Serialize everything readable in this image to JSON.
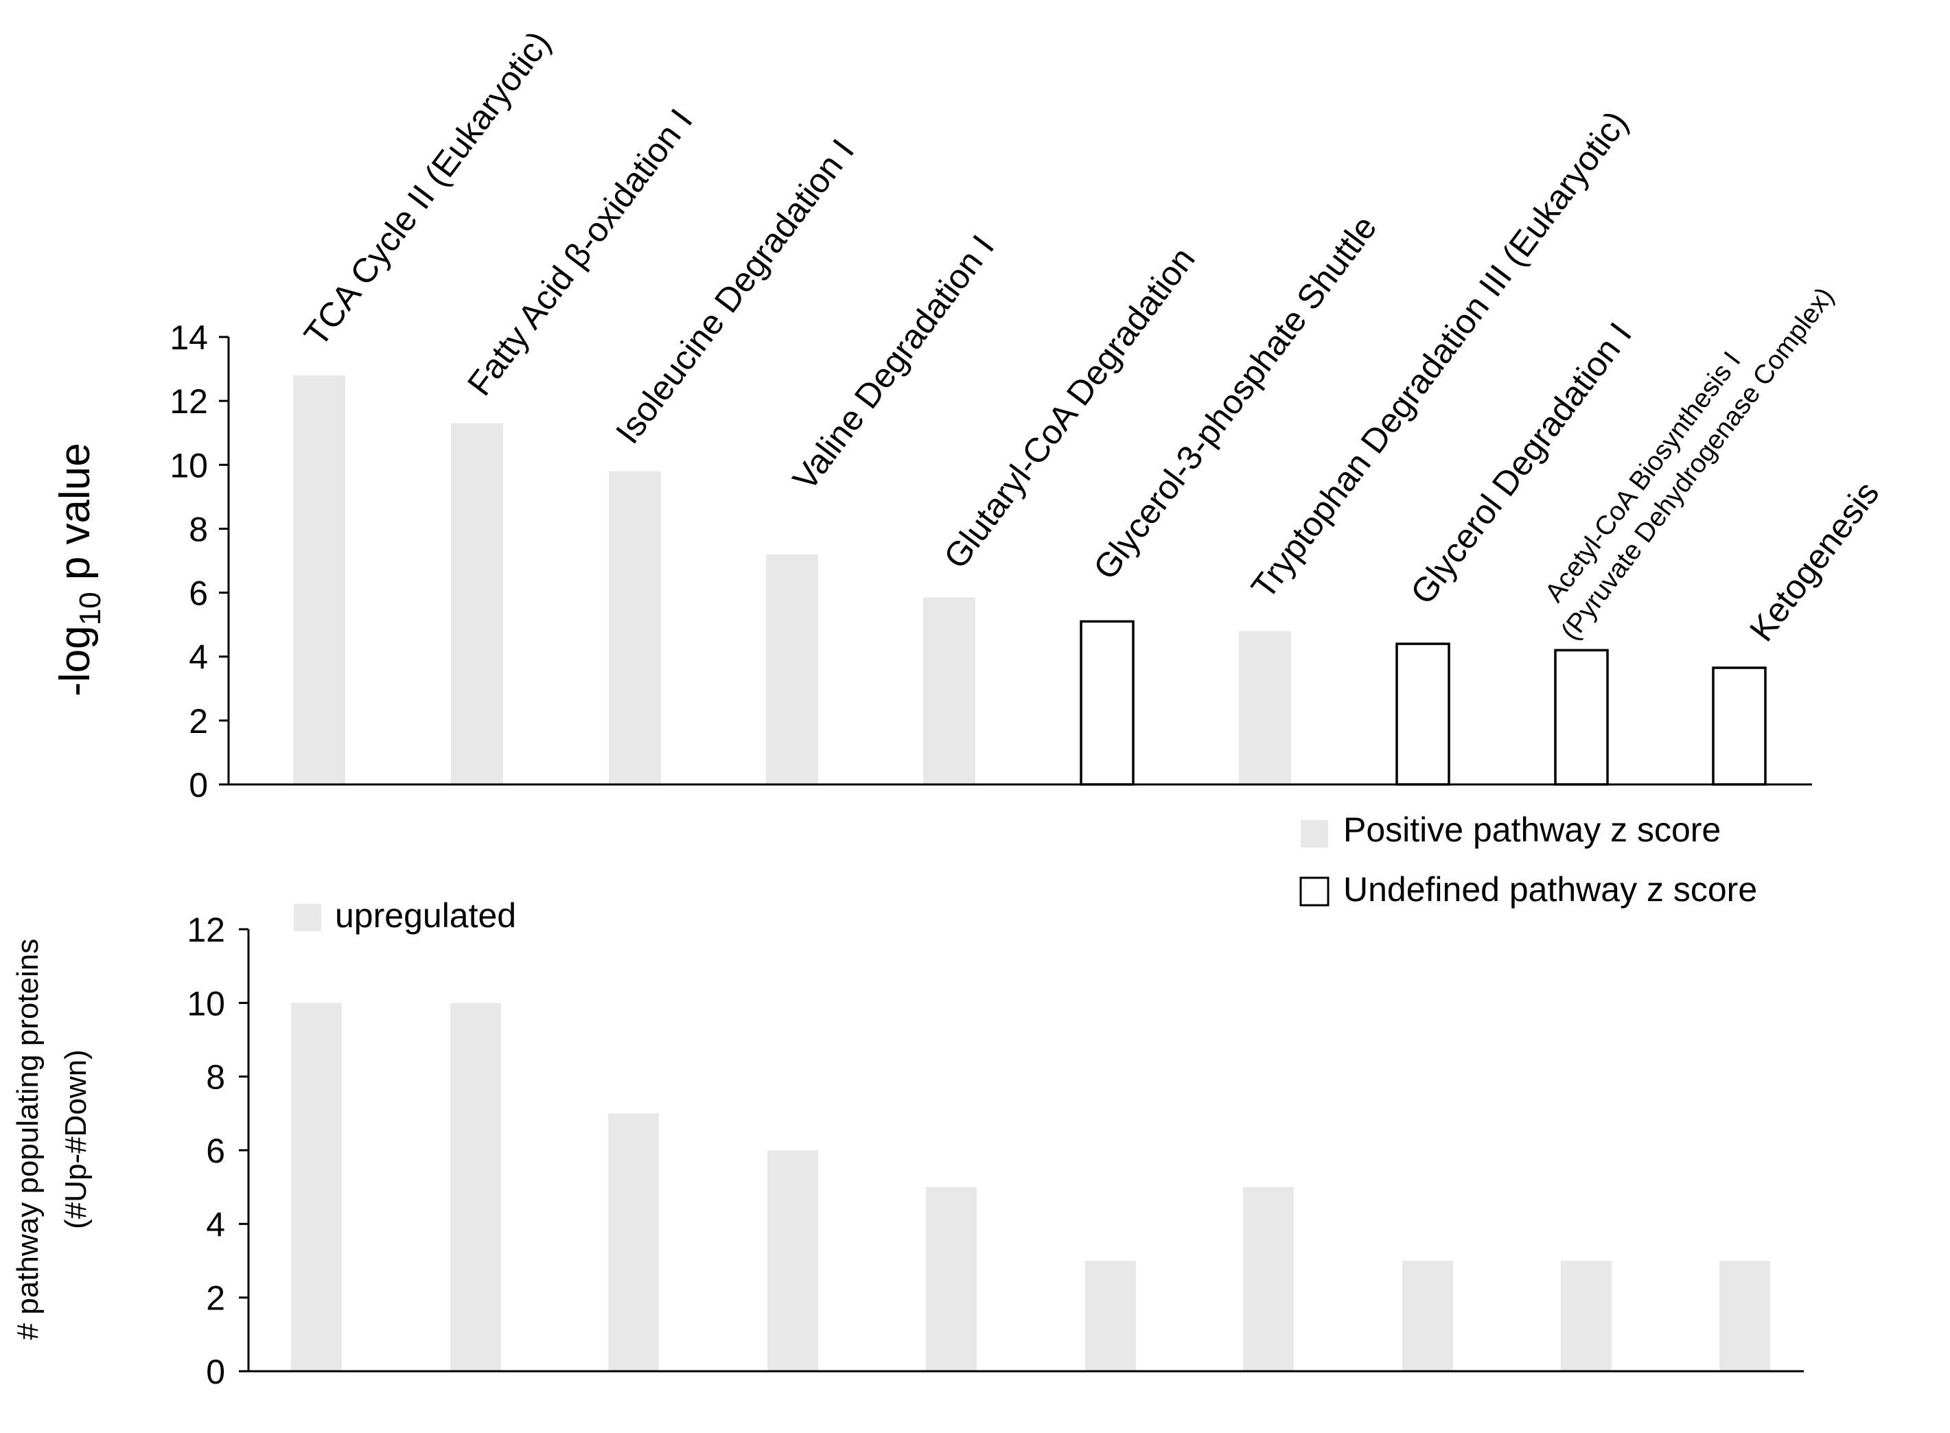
{
  "chart_data": [
    {
      "type": "bar",
      "panel": "top",
      "categories": [
        "TCA Cycle II (Eukaryotic)",
        "Fatty Acid β-oxidation I",
        "Isoleucine Degradation I",
        "Valine Degradation I",
        "Glutaryl-CoA Degradation",
        "Glycerol-3-phosphate Shuttle",
        "Tryptophan Degradation III (Eukaryotic)",
        "Glycerol Degradation I",
        "Acetyl-CoA Biosynthesis I (Pyruvate Dehydrogenase Complex)",
        "Ketogenesis"
      ],
      "category_lines": [
        [
          "TCA Cycle II (Eukaryotic)"
        ],
        [
          "Fatty Acid β-oxidation I"
        ],
        [
          "Isoleucine Degradation I"
        ],
        [
          "Valine Degradation I"
        ],
        [
          "Glutaryl-CoA Degradation"
        ],
        [
          "Glycerol-3-phosphate Shuttle"
        ],
        [
          "Tryptophan Degradation III (Eukaryotic)"
        ],
        [
          "Glycerol Degradation I"
        ],
        [
          "Acetyl-CoA Biosynthesis I",
          "(Pyruvate Dehydrogenase Complex)"
        ],
        [
          "Ketogenesis"
        ]
      ],
      "values": [
        12.8,
        11.3,
        9.8,
        7.2,
        5.85,
        5.1,
        4.8,
        4.4,
        4.2,
        3.65
      ],
      "z_score": [
        "positive",
        "positive",
        "positive",
        "positive",
        "positive",
        "undefined",
        "positive",
        "undefined",
        "undefined",
        "undefined"
      ],
      "ylabel_main": "-log",
      "ylabel_sub": "10",
      "ylabel_tail": " p value",
      "ylim": [
        0,
        14
      ],
      "yticks": [
        0,
        2,
        4,
        6,
        8,
        10,
        12,
        14
      ],
      "legend": {
        "placement": "bottom-right",
        "entries": [
          {
            "label": "Positive pathway z score",
            "style": "positive"
          },
          {
            "label": "Undefined pathway z score",
            "style": "undefined"
          }
        ]
      }
    },
    {
      "type": "bar",
      "panel": "bottom",
      "categories": [
        "TCA Cycle II (Eukaryotic)",
        "Fatty Acid β-oxidation I",
        "Isoleucine Degradation I",
        "Valine Degradation I",
        "Glutaryl-CoA Degradation",
        "Glycerol-3-phosphate Shuttle",
        "Tryptophan Degradation III (Eukaryotic)",
        "Glycerol Degradation I",
        "Acetyl-CoA Biosynthesis I (Pyruvate Dehydrogenase Complex)",
        "Ketogenesis"
      ],
      "values": [
        10,
        10,
        7,
        6,
        5,
        3,
        5,
        3,
        3,
        3
      ],
      "ylabel_line1": "# pathway populating proteins",
      "ylabel_line2": "(#Up-#Down)",
      "ylim": [
        0,
        12
      ],
      "yticks": [
        0,
        2,
        4,
        6,
        8,
        10,
        12
      ],
      "legend": {
        "placement": "top-left",
        "entries": [
          {
            "label": "upregulated",
            "style": "positive"
          }
        ]
      }
    }
  ],
  "colors": {
    "positive_fill": "#e8e8e8",
    "undefined_fill": "#ffffff",
    "undefined_stroke": "#000000",
    "axis": "#000000",
    "text": "#000000"
  }
}
